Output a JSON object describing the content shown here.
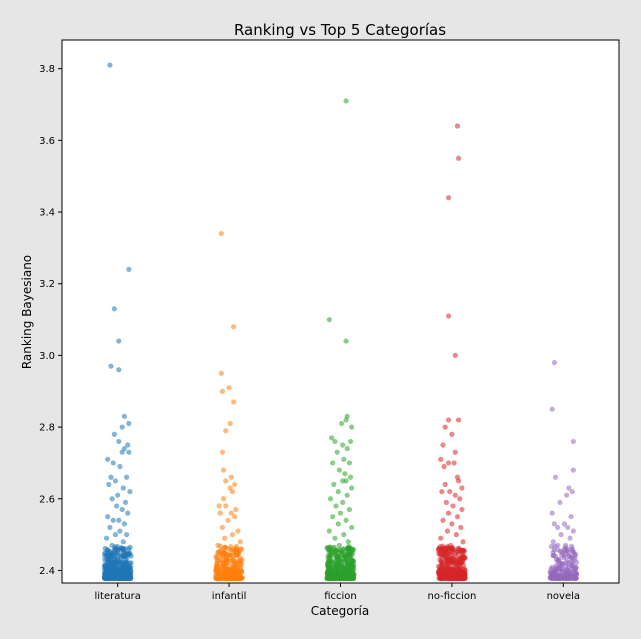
{
  "chart_data": {
    "type": "scatter",
    "style": "strip",
    "title": "Ranking vs Top 5 Categorías",
    "xlabel": "Categoría",
    "ylabel": "Ranking Bayesiano",
    "categories": [
      "literatura",
      "infantil",
      "ficcion",
      "no-ficcion",
      "novela"
    ],
    "ylim": [
      2.365,
      3.88
    ],
    "yticks": [
      2.4,
      2.6,
      2.8,
      3.0,
      3.2,
      3.4,
      3.6,
      3.8
    ],
    "ytick_labels": [
      "2.4",
      "2.6",
      "2.8",
      "3.0",
      "3.2",
      "3.4",
      "3.6",
      "3.8"
    ],
    "grid": false,
    "marker_alpha": 0.55,
    "series": [
      {
        "category": "literatura",
        "color": "#1f77b4",
        "dense_count": 420,
        "points": [
          [
            -0.07,
            3.81
          ],
          [
            0.1,
            3.24
          ],
          [
            -0.03,
            3.13
          ],
          [
            0.01,
            3.04
          ],
          [
            -0.06,
            2.97
          ],
          [
            0.01,
            2.96
          ],
          [
            0.06,
            2.83
          ],
          [
            0.1,
            2.81
          ],
          [
            0.04,
            2.8
          ],
          [
            -0.03,
            2.78
          ],
          [
            0.01,
            2.76
          ],
          [
            0.09,
            2.75
          ],
          [
            0.06,
            2.74
          ],
          [
            0.04,
            2.73
          ],
          [
            0.1,
            2.73
          ],
          [
            -0.09,
            2.71
          ],
          [
            -0.04,
            2.7
          ],
          [
            0.02,
            2.69
          ],
          [
            -0.06,
            2.66
          ],
          [
            0.08,
            2.66
          ],
          [
            -0.02,
            2.65
          ],
          [
            -0.08,
            2.64
          ],
          [
            0.05,
            2.63
          ],
          [
            0.11,
            2.62
          ],
          [
            0.0,
            2.61
          ],
          [
            -0.05,
            2.6
          ],
          [
            0.07,
            2.59
          ],
          [
            -0.01,
            2.58
          ],
          [
            0.04,
            2.57
          ],
          [
            0.09,
            2.56
          ],
          [
            -0.09,
            2.55
          ],
          [
            -0.04,
            2.54
          ],
          [
            0.01,
            2.54
          ],
          [
            0.06,
            2.53
          ],
          [
            -0.07,
            2.52
          ],
          [
            0.02,
            2.51
          ],
          [
            -0.02,
            2.5
          ],
          [
            0.08,
            2.5
          ],
          [
            -0.1,
            2.49
          ],
          [
            0.05,
            2.48
          ],
          [
            -0.05,
            2.47
          ],
          [
            0.1,
            2.46
          ],
          [
            0.0,
            2.45
          ],
          [
            -0.08,
            2.44
          ],
          [
            0.07,
            2.44
          ],
          [
            -0.03,
            2.43
          ],
          [
            0.03,
            2.42
          ],
          [
            0.11,
            2.42
          ]
        ]
      },
      {
        "category": "infantil",
        "color": "#ff7f0e",
        "dense_count": 300,
        "points": [
          [
            -0.07,
            3.34
          ],
          [
            0.04,
            3.08
          ],
          [
            -0.07,
            2.95
          ],
          [
            0.0,
            2.91
          ],
          [
            -0.06,
            2.9
          ],
          [
            0.04,
            2.87
          ],
          [
            0.01,
            2.81
          ],
          [
            -0.03,
            2.79
          ],
          [
            -0.06,
            2.73
          ],
          [
            -0.05,
            2.68
          ],
          [
            0.02,
            2.66
          ],
          [
            -0.03,
            2.65
          ],
          [
            0.05,
            2.64
          ],
          [
            0.01,
            2.63
          ],
          [
            0.03,
            2.62
          ],
          [
            -0.05,
            2.6
          ],
          [
            -0.09,
            2.58
          ],
          [
            -0.03,
            2.58
          ],
          [
            0.06,
            2.57
          ],
          [
            0.02,
            2.56
          ],
          [
            -0.08,
            2.56
          ],
          [
            0.05,
            2.55
          ],
          [
            -0.01,
            2.54
          ],
          [
            -0.06,
            2.52
          ],
          [
            0.08,
            2.51
          ],
          [
            0.03,
            2.5
          ],
          [
            -0.04,
            2.49
          ],
          [
            0.1,
            2.48
          ],
          [
            -0.1,
            2.47
          ],
          [
            0.0,
            2.46
          ],
          [
            0.07,
            2.45
          ],
          [
            -0.06,
            2.44
          ],
          [
            0.04,
            2.43
          ],
          [
            -0.02,
            2.42
          ]
        ]
      },
      {
        "category": "ficcion",
        "color": "#2ca02c",
        "dense_count": 450,
        "points": [
          [
            0.05,
            3.71
          ],
          [
            -0.1,
            3.1
          ],
          [
            0.05,
            3.04
          ],
          [
            0.06,
            2.83
          ],
          [
            0.05,
            2.82
          ],
          [
            0.01,
            2.81
          ],
          [
            0.1,
            2.8
          ],
          [
            -0.08,
            2.77
          ],
          [
            -0.05,
            2.76
          ],
          [
            0.09,
            2.76
          ],
          [
            0.02,
            2.75
          ],
          [
            0.06,
            2.74
          ],
          [
            -0.03,
            2.73
          ],
          [
            0.03,
            2.71
          ],
          [
            -0.07,
            2.7
          ],
          [
            0.08,
            2.7
          ],
          [
            -0.01,
            2.68
          ],
          [
            0.04,
            2.67
          ],
          [
            0.09,
            2.66
          ],
          [
            0.02,
            2.65
          ],
          [
            0.05,
            2.65
          ],
          [
            -0.06,
            2.64
          ],
          [
            0.1,
            2.63
          ],
          [
            -0.02,
            2.62
          ],
          [
            0.06,
            2.61
          ],
          [
            -0.09,
            2.6
          ],
          [
            0.02,
            2.59
          ],
          [
            -0.04,
            2.58
          ],
          [
            0.08,
            2.57
          ],
          [
            0.0,
            2.56
          ],
          [
            -0.07,
            2.55
          ],
          [
            0.05,
            2.54
          ],
          [
            -0.02,
            2.53
          ],
          [
            0.1,
            2.52
          ],
          [
            -0.1,
            2.51
          ],
          [
            0.03,
            2.5
          ],
          [
            -0.05,
            2.49
          ],
          [
            0.07,
            2.48
          ],
          [
            -0.01,
            2.47
          ],
          [
            0.09,
            2.46
          ],
          [
            -0.08,
            2.45
          ],
          [
            0.04,
            2.44
          ],
          [
            -0.03,
            2.43
          ],
          [
            0.06,
            2.42
          ]
        ]
      },
      {
        "category": "no-ficcion",
        "color": "#d62728",
        "dense_count": 400,
        "points": [
          [
            0.05,
            3.64
          ],
          [
            0.06,
            3.55
          ],
          [
            -0.03,
            3.44
          ],
          [
            -0.03,
            3.11
          ],
          [
            0.03,
            3.0
          ],
          [
            -0.03,
            2.82
          ],
          [
            0.06,
            2.82
          ],
          [
            -0.06,
            2.8
          ],
          [
            0.0,
            2.78
          ],
          [
            -0.08,
            2.75
          ],
          [
            0.03,
            2.73
          ],
          [
            -0.1,
            2.71
          ],
          [
            -0.03,
            2.7
          ],
          [
            0.02,
            2.7
          ],
          [
            -0.07,
            2.69
          ],
          [
            0.05,
            2.66
          ],
          [
            0.06,
            2.65
          ],
          [
            -0.06,
            2.64
          ],
          [
            0.09,
            2.63
          ],
          [
            -0.02,
            2.62
          ],
          [
            -0.09,
            2.62
          ],
          [
            0.03,
            2.61
          ],
          [
            0.07,
            2.6
          ],
          [
            -0.05,
            2.59
          ],
          [
            0.01,
            2.58
          ],
          [
            0.09,
            2.57
          ],
          [
            -0.03,
            2.56
          ],
          [
            0.05,
            2.55
          ],
          [
            -0.08,
            2.54
          ],
          [
            0.0,
            2.53
          ],
          [
            0.08,
            2.52
          ],
          [
            -0.04,
            2.51
          ],
          [
            0.04,
            2.5
          ],
          [
            -0.1,
            2.49
          ],
          [
            0.1,
            2.48
          ],
          [
            -0.01,
            2.47
          ],
          [
            0.06,
            2.46
          ],
          [
            -0.06,
            2.45
          ],
          [
            0.02,
            2.44
          ],
          [
            -0.03,
            2.43
          ],
          [
            0.08,
            2.42
          ]
        ]
      },
      {
        "category": "novela",
        "color": "#9467bd",
        "dense_count": 200,
        "points": [
          [
            -0.08,
            2.98
          ],
          [
            -0.1,
            2.85
          ],
          [
            0.09,
            2.76
          ],
          [
            0.09,
            2.68
          ],
          [
            -0.07,
            2.66
          ],
          [
            0.05,
            2.63
          ],
          [
            0.08,
            2.62
          ],
          [
            0.03,
            2.61
          ],
          [
            -0.03,
            2.59
          ],
          [
            -0.1,
            2.56
          ],
          [
            0.07,
            2.55
          ],
          [
            0.01,
            2.53
          ],
          [
            -0.08,
            2.53
          ],
          [
            -0.05,
            2.52
          ],
          [
            0.04,
            2.52
          ],
          [
            0.09,
            2.51
          ],
          [
            -0.02,
            2.5
          ],
          [
            0.06,
            2.49
          ],
          [
            -0.09,
            2.48
          ],
          [
            0.02,
            2.47
          ],
          [
            -0.05,
            2.47
          ],
          [
            0.08,
            2.46
          ],
          [
            -0.01,
            2.45
          ],
          [
            -0.07,
            2.44
          ],
          [
            0.05,
            2.44
          ],
          [
            0.1,
            2.43
          ],
          [
            -0.03,
            2.42
          ],
          [
            0.03,
            2.42
          ]
        ]
      }
    ]
  }
}
